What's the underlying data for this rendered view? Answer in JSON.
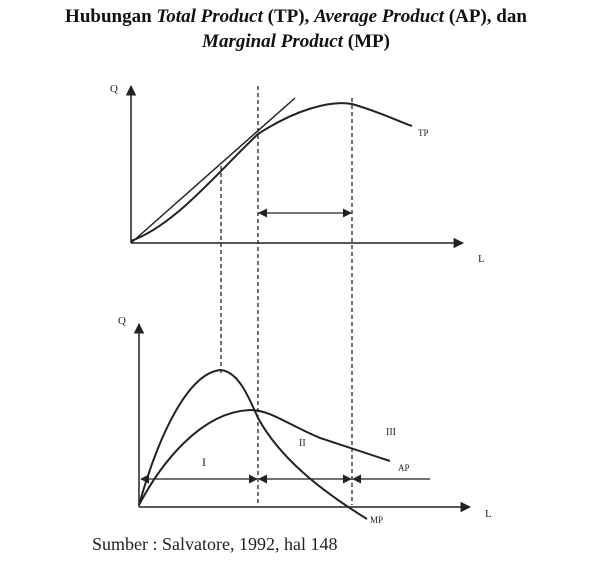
{
  "title": {
    "prefix": "Hubungan ",
    "tp": "Total Product",
    "tp_abbr": " (TP), ",
    "ap": "Average Product",
    "ap_abbr": " (AP), dan",
    "mp": "Marginal Product",
    "mp_abbr": " (MP)"
  },
  "top_graph": {
    "y_axis_label": "Q",
    "x_axis_label": "L",
    "curve_label": "TP"
  },
  "bottom_graph": {
    "y_axis_label": "Q",
    "x_axis_label": "L",
    "ap_label": "AP",
    "mp_label": "MP",
    "stage_1": "I",
    "stage_2": "II",
    "stage_3": "III"
  },
  "source": "Sumber : Salvatore, 1992, hal 148"
}
